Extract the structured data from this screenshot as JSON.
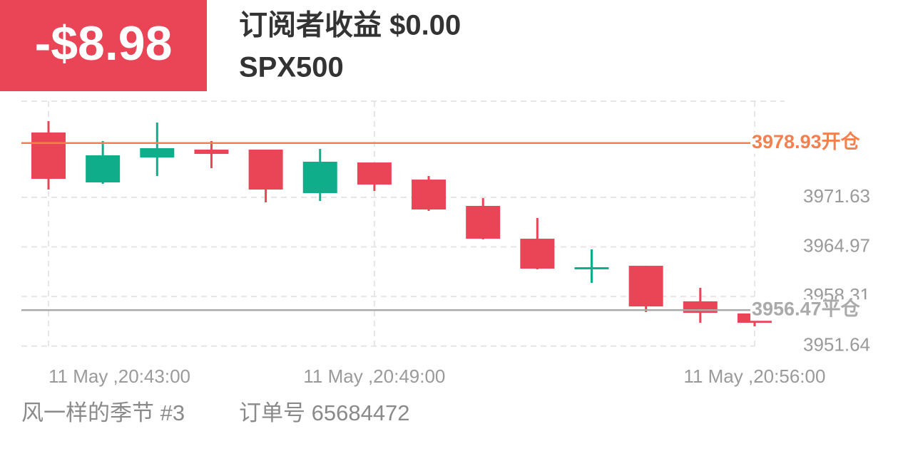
{
  "header": {
    "profit": "-$8.98",
    "title": "订阅者收益 $0.00",
    "symbol": "SPX500"
  },
  "footer": {
    "user": "风一样的季节 #3",
    "order": "订单号 65684472"
  },
  "chart_data": {
    "type": "candlestick",
    "categories": [
      "11 May ,20:43:00",
      null,
      null,
      null,
      null,
      null,
      "11 May ,20:49:00",
      null,
      null,
      null,
      null,
      null,
      null,
      "11 May ,20:56:00"
    ],
    "open": [
      3980.35,
      3973.64,
      3976.99,
      3978.05,
      3978.05,
      3972.2,
      3976.32,
      3974.02,
      3970.48,
      3966.07,
      3962.24,
      3962.43,
      3957.65,
      3956.02
    ],
    "high": [
      3981.88,
      3979.2,
      3981.69,
      3979.2,
      3978.05,
      3978.14,
      3976.32,
      3974.5,
      3971.53,
      3968.85,
      3964.64,
      3962.43,
      3959.47,
      3956.02
    ],
    "low": [
      3972.68,
      3973.45,
      3974.5,
      3975.56,
      3970.96,
      3971.15,
      3972.49,
      3969.81,
      3965.98,
      3961.96,
      3960.14,
      3956.21,
      3954.77,
      3954.29
    ],
    "close": [
      3974.12,
      3977.28,
      3978.24,
      3977.47,
      3972.68,
      3976.42,
      3973.35,
      3970.0,
      3966.07,
      3962.05,
      3962.24,
      3956.97,
      3956.11,
      3954.77
    ],
    "up_color": "#10ad8b",
    "down_color": "#e94557",
    "ylim": [
      3951.42,
      3984.56
    ],
    "yticks": [
      3951.64,
      3958.31,
      3964.97,
      3971.63
    ],
    "open_line": {
      "value": 3978.93,
      "label": "3978.93开仓",
      "color": "#f5804d"
    },
    "close_line": {
      "value": 3956.47,
      "label": "3956.47平仓",
      "color": "#aaaaaa"
    },
    "grid": true
  }
}
